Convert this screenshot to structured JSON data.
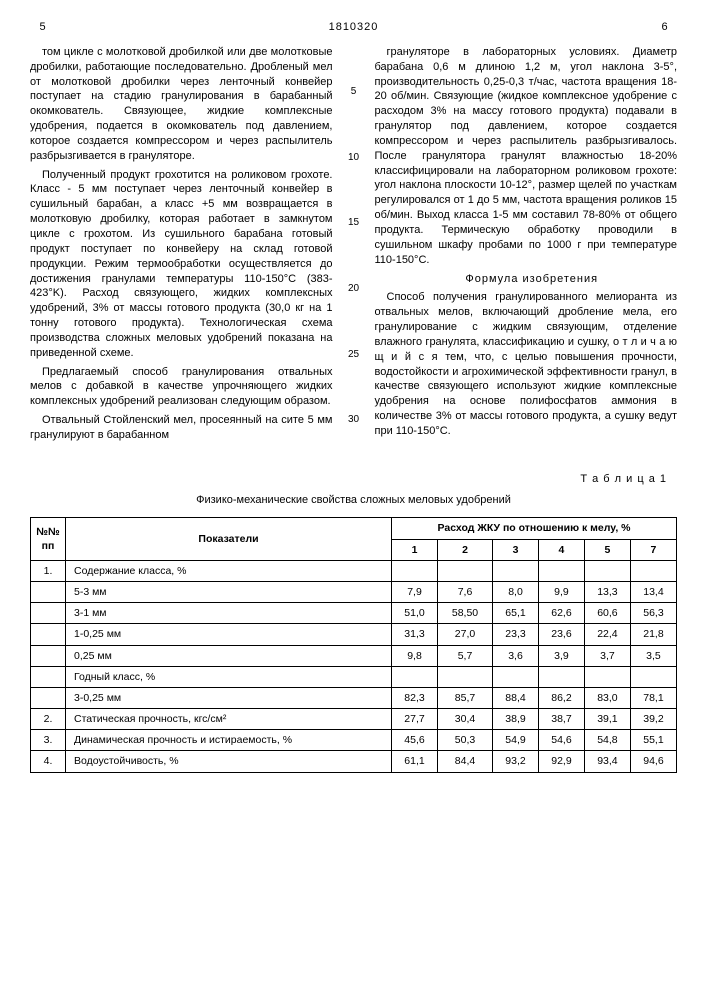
{
  "header": {
    "leftPage": "5",
    "docNumber": "1810320",
    "rightPage": "6"
  },
  "lineMarkers": [
    "5",
    "10",
    "15",
    "20",
    "25",
    "30"
  ],
  "leftColumn": {
    "p1": "том цикле с молотковой дробилкой или две молотковые дробилки, работающие последовательно. Дробленый мел от молотковой дробилки через ленточный конвейер поступает на стадию гранулирования в барабанный окомкователь. Связующее, жидкие комплексные удобрения, подается в окомкователь под давлением, которое создается компрессором и через распылитель разбрызгивается в грануляторе.",
    "p2": "Полученный продукт грохотится на роликовом грохоте. Класс - 5 мм поступает через ленточный конвейер в сушильный барабан, а класс +5 мм возвращается в молотковую дробилку, которая работает в замкнутом цикле с грохотом. Из сушильного барабана готовый продукт поступает по конвейеру на склад готовой продукции. Режим термообработки осуществляется до достижения гранулами температуры 110-150°С (383-423°K). Расход связующего, жидких комплексных удобрений, 3% от массы готового продукта (30,0 кг на 1 тонну готового продукта). Технологическая схема производства сложных меловых удобрений показана на приведенной схеме.",
    "p3": "Предлагаемый способ гранулирования отвальных мелов с добавкой в качестве упрочняющего жидких комплексных удобрений реализован следующим образом.",
    "p4": "Отвальный Стойленский мел, просеянный на сите 5 мм гранулируют в барабанном"
  },
  "rightColumn": {
    "p1": "грануляторе в лабораторных условиях. Диаметр барабана 0,6 м длиною 1,2 м, угол наклона 3-5°, производительность 0,25-0,3 т/час, частота вращения 18-20 об/мин. Связующие (жидкое комплексное удобрение с расходом 3% на массу готового продукта) подавали в гранулятор под давлением, которое создается компрессором и через распылитель разбрызгивалось. После гранулятора гранулят влажностью 18-20% классифицировали на лабораторном роликовом грохоте: угол наклона плоскости 10-12°, размер щелей по участкам регулировался от 1 до 5 мм, частота вращения роликов 15 об/мин. Выход класса 1-5 мм составил 78-80% от общего продукта. Термическую обработку проводили в сушильном шкафу пробами по 1000 г при температуре 110-150°С.",
    "formulaHead": "Формула изобретения",
    "p2": "Способ получения гранулированного мелиоранта из отвальных мелов, включающий дробление мела, его гранулирование с жидким связующим, отделение влажного гранулята, классификацию и сушку, о т л и ч а ю щ и й с я  тем, что, с целью повышения прочности, водостойкости и агрохимической эффективности гранул, в качестве связующего используют жидкие комплексные удобрения на основе полифосфатов аммония в количестве 3% от массы готового продукта, а сушку ведут при 110-150°С."
  },
  "table": {
    "label": "Т а б л и ц а 1",
    "caption": "Физико-механические свойства сложных меловых удобрений",
    "headers": {
      "col1": "№№ пп",
      "col2": "Показатели",
      "colgroup": "Расход ЖКУ по отношению к мелу, %",
      "cols": [
        "1",
        "2",
        "3",
        "4",
        "5",
        "7"
      ]
    },
    "rows": [
      {
        "n": "1.",
        "label": "Содержание класса, %",
        "vals": [
          "",
          "",
          "",
          "",
          "",
          ""
        ]
      },
      {
        "n": "",
        "label": "5-3 мм",
        "indent": true,
        "vals": [
          "7,9",
          "7,6",
          "8,0",
          "9,9",
          "13,3",
          "13,4"
        ]
      },
      {
        "n": "",
        "label": "3-1 мм",
        "indent": true,
        "vals": [
          "51,0",
          "58,50",
          "65,1",
          "62,6",
          "60,6",
          "56,3"
        ]
      },
      {
        "n": "",
        "label": "1-0,25 мм",
        "indent": true,
        "vals": [
          "31,3",
          "27,0",
          "23,3",
          "23,6",
          "22,4",
          "21,8"
        ]
      },
      {
        "n": "",
        "label": "0,25 мм",
        "indent": true,
        "vals": [
          "9,8",
          "5,7",
          "3,6",
          "3,9",
          "3,7",
          "3,5"
        ]
      },
      {
        "n": "",
        "label": "Годный класс, %",
        "indent": true,
        "vals": [
          "",
          "",
          "",
          "",
          "",
          ""
        ]
      },
      {
        "n": "",
        "label": "3-0,25 мм",
        "indent": true,
        "vals": [
          "82,3",
          "85,7",
          "88,4",
          "86,2",
          "83,0",
          "78,1"
        ]
      },
      {
        "n": "2.",
        "label": "Статическая прочность, кгс/см²",
        "vals": [
          "27,7",
          "30,4",
          "38,9",
          "38,7",
          "39,1",
          "39,2"
        ]
      },
      {
        "n": "3.",
        "label": "Динамическая прочность и истираемость, %",
        "vals": [
          "45,6",
          "50,3",
          "54,9",
          "54,6",
          "54,8",
          "55,1"
        ]
      },
      {
        "n": "4.",
        "label": "Водоустойчивость, %",
        "vals": [
          "61,1",
          "84,4",
          "93,2",
          "92,9",
          "93,4",
          "94,6"
        ]
      }
    ]
  }
}
